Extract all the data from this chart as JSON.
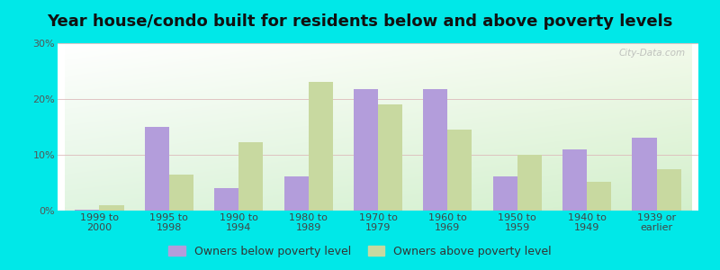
{
  "title": "Year house/condo built for residents below and above poverty levels",
  "categories": [
    "1999 to\n2000",
    "1995 to\n1998",
    "1990 to\n1994",
    "1980 to\n1989",
    "1970 to\n1979",
    "1960 to\n1969",
    "1950 to\n1959",
    "1940 to\n1949",
    "1939 or\nearlier"
  ],
  "below_poverty": [
    0.2,
    15.0,
    4.0,
    6.2,
    21.8,
    21.8,
    6.2,
    11.0,
    13.0
  ],
  "above_poverty": [
    1.0,
    6.5,
    12.2,
    23.0,
    19.0,
    14.5,
    10.0,
    5.2,
    7.5
  ],
  "below_color": "#b39ddb",
  "above_color": "#c8d9a0",
  "below_label": "Owners below poverty level",
  "above_label": "Owners above poverty level",
  "ylim": [
    0,
    30
  ],
  "yticks": [
    0,
    10,
    20,
    30
  ],
  "ytick_labels": [
    "0%",
    "10%",
    "20%",
    "30%"
  ],
  "outer_bg": "#00e8e8",
  "title_fontsize": 13,
  "tick_fontsize": 8,
  "legend_fontsize": 9,
  "bar_width": 0.35,
  "watermark": "City-Data.com"
}
